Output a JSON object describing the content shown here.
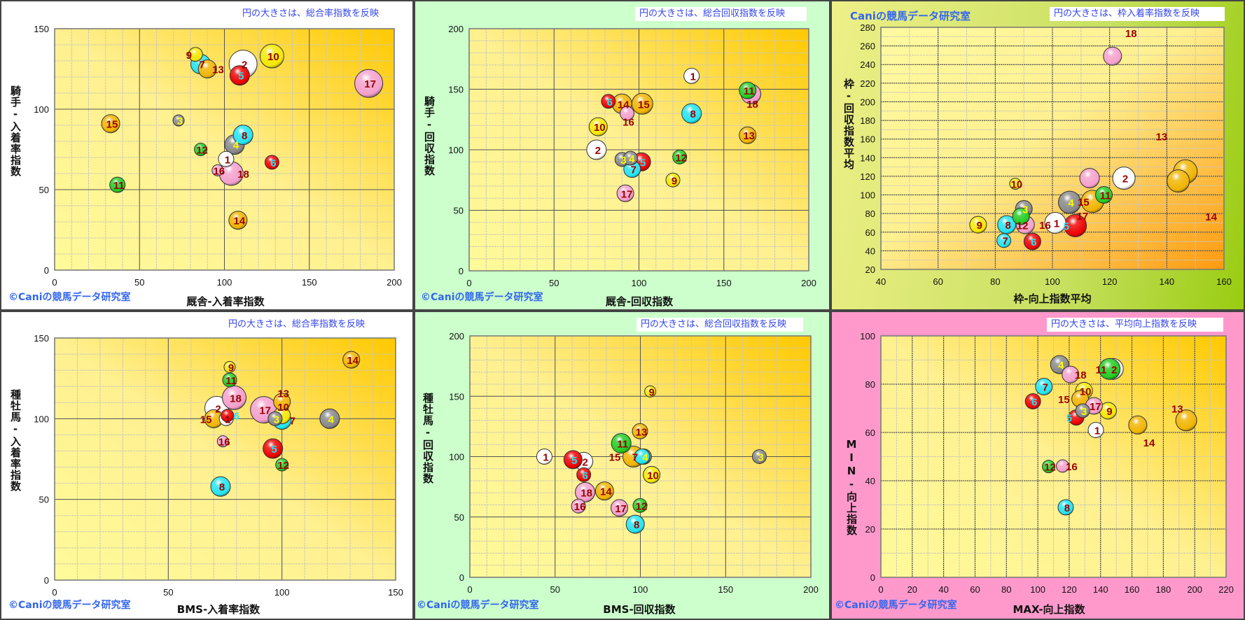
{
  "frame_colors": {
    "1": "#ffffff",
    "2": "#ffffff",
    "3": "#888888",
    "4": "#888888",
    "5": "#ee0000",
    "6": "#ee0000",
    "7": "#22e4f0",
    "8": "#22e4f0",
    "9": "#f4e800",
    "10": "#f4e800",
    "11": "#22cc22",
    "12": "#22cc22",
    "13": "#f0b400",
    "14": "#f0b400",
    "15": "#f0b400",
    "16": "#f4a0cc",
    "17": "#f4a0cc",
    "18": "#f4a0cc"
  },
  "label_colors": {
    "default": "#990000",
    "3": "#ffff00",
    "4": "#ffff00",
    "5": "#22e4f0",
    "6": "#22e4f0"
  },
  "chart_data": [
    {
      "type": "bubble",
      "note": "円の大きさは、総合率指数を反映",
      "credit": "©Caniの競馬データ研究室",
      "xlabel": "厩舎-入着率指数",
      "ylabel": "騎手-入着率指数",
      "xlim": [
        0,
        200
      ],
      "ylim": [
        0,
        150
      ],
      "xticks": [
        0,
        50,
        100,
        150,
        200
      ],
      "yticks": [
        0,
        50,
        100,
        150
      ],
      "minor": 10,
      "points": [
        {
          "label": "1",
          "x": 101,
          "y": 69,
          "size": 11
        },
        {
          "label": "2",
          "x": 111,
          "y": 128,
          "size": 20
        },
        {
          "label": "3",
          "x": 73,
          "y": 93,
          "size": 8
        },
        {
          "label": "4",
          "x": 106,
          "y": 78,
          "size": 14
        },
        {
          "label": "5",
          "x": 109,
          "y": 121,
          "size": 14
        },
        {
          "label": "6",
          "x": 128,
          "y": 67,
          "size": 10
        },
        {
          "label": "7",
          "x": 86,
          "y": 128,
          "size": 14
        },
        {
          "label": "8",
          "x": 111,
          "y": 84,
          "size": 14
        },
        {
          "label": "9",
          "x": 83,
          "y": 134,
          "size": 10
        },
        {
          "label": "10",
          "x": 128,
          "y": 133,
          "size": 17
        },
        {
          "label": "11",
          "x": 37,
          "y": 53,
          "size": 11
        },
        {
          "label": "12",
          "x": 86,
          "y": 75,
          "size": 9
        },
        {
          "label": "13",
          "x": 90,
          "y": 125,
          "size": 13
        },
        {
          "label": "14",
          "x": 108,
          "y": 31,
          "size": 13
        },
        {
          "label": "15",
          "x": 33,
          "y": 91,
          "size": 13
        },
        {
          "label": "16",
          "x": 96,
          "y": 62,
          "size": 8
        },
        {
          "label": "17",
          "x": 185,
          "y": 116,
          "size": 20
        },
        {
          "label": "18",
          "x": 104,
          "y": 60,
          "size": 17
        }
      ]
    },
    {
      "type": "bubble",
      "note": "円の大きさは、総合回収指数を反映",
      "credit": "©Caniの競馬データ研究室",
      "xlabel": "厩舎-回収指数",
      "ylabel": "騎手-回収指数",
      "xlim": [
        0,
        200
      ],
      "ylim": [
        0,
        200
      ],
      "xticks": [
        0,
        50,
        100,
        150,
        200
      ],
      "yticks": [
        0,
        50,
        100,
        150,
        200
      ],
      "minor": 10,
      "points": [
        {
          "label": "1",
          "x": 131,
          "y": 161,
          "size": 11
        },
        {
          "label": "2",
          "x": 75,
          "y": 100,
          "size": 14
        },
        {
          "label": "3",
          "x": 90,
          "y": 92,
          "size": 10
        },
        {
          "label": "4",
          "x": 95,
          "y": 93,
          "size": 10
        },
        {
          "label": "5",
          "x": 101.5,
          "y": 90,
          "size": 13
        },
        {
          "label": "6",
          "x": 82,
          "y": 140,
          "size": 10
        },
        {
          "label": "7",
          "x": 96,
          "y": 84,
          "size": 12
        },
        {
          "label": "8",
          "x": 131,
          "y": 130,
          "size": 14
        },
        {
          "label": "9",
          "x": 120,
          "y": 75,
          "size": 10
        },
        {
          "label": "10",
          "x": 76,
          "y": 119,
          "size": 13
        },
        {
          "label": "11",
          "x": 164,
          "y": 149,
          "size": 12
        },
        {
          "label": "12",
          "x": 124,
          "y": 94,
          "size": 10
        },
        {
          "label": "13",
          "x": 164,
          "y": 112,
          "size": 12
        },
        {
          "label": "14",
          "x": 90,
          "y": 138,
          "size": 14
        },
        {
          "label": "15",
          "x": 102,
          "y": 138,
          "size": 15
        },
        {
          "label": "16",
          "x": 93,
          "y": 130,
          "size": 10
        },
        {
          "label": "17",
          "x": 92,
          "y": 64,
          "size": 12
        },
        {
          "label": "18",
          "x": 166,
          "y": 146,
          "size": 14
        }
      ]
    },
    {
      "type": "bubble",
      "note": "円の大きさは、枠入着率指数を反映",
      "credit": "Caniの競馬データ研究室",
      "xlabel": "枠-向上指数平均",
      "ylabel": "枠-回収指数平均",
      "xlim": [
        40,
        160
      ],
      "ylim": [
        20,
        280
      ],
      "xticks": [
        40,
        60,
        80,
        100,
        120,
        140,
        160
      ],
      "yticks": [
        20,
        40,
        60,
        80,
        100,
        120,
        140,
        160,
        180,
        200,
        220,
        240,
        260,
        280
      ],
      "minor": 10,
      "points": [
        {
          "label": "1",
          "x": 101,
          "y": 70,
          "size": 15
        },
        {
          "label": "2",
          "x": 125,
          "y": 118,
          "size": 16
        },
        {
          "label": "3",
          "x": 90,
          "y": 85,
          "size": 12
        },
        {
          "label": "4",
          "x": 106,
          "y": 92,
          "size": 16
        },
        {
          "label": "5",
          "x": 108,
          "y": 67,
          "size": 16
        },
        {
          "label": "6",
          "x": 93,
          "y": 50,
          "size": 12
        },
        {
          "label": "7",
          "x": 83,
          "y": 51,
          "size": 10
        },
        {
          "label": "8",
          "x": 84,
          "y": 68,
          "size": 13
        },
        {
          "label": "9",
          "x": 74,
          "y": 68,
          "size": 12
        },
        {
          "label": "10",
          "x": 87,
          "y": 112,
          "size": 8
        },
        {
          "label": "11",
          "x": 118,
          "y": 100,
          "size": 12
        },
        {
          "label": "12",
          "x": 89,
          "y": 77,
          "size": 12
        },
        {
          "label": "13",
          "x": 146.5,
          "y": 125,
          "size": 17,
          "lx": 137.7,
          "ly": 163
        },
        {
          "label": "14",
          "x": 144,
          "y": 115,
          "size": 16,
          "lx": 155,
          "ly": 77
        },
        {
          "label": "15",
          "x": 114,
          "y": 93,
          "size": 16
        },
        {
          "label": "16",
          "x": 90.5,
          "y": 68,
          "size": 13
        },
        {
          "label": "17",
          "x": 113,
          "y": 118,
          "size": 14,
          "lx": 110,
          "ly": 78
        },
        {
          "label": "18",
          "x": 121,
          "y": 249,
          "size": 13,
          "lx": 127,
          "ly": 284
        }
      ]
    },
    {
      "type": "bubble",
      "note": "円の大きさは、総合率指数を反映",
      "credit": "©Caniの競馬データ研究室",
      "xlabel": "BMS-入着率指数",
      "ylabel": "種牡馬-入着率指数",
      "xlim": [
        0,
        150
      ],
      "ylim": [
        0,
        150
      ],
      "xticks": [
        0,
        50,
        100,
        150
      ],
      "yticks": [
        0,
        50,
        100,
        150
      ],
      "minor": 10,
      "points": [
        {
          "label": "1",
          "x": 75.5,
          "y": 100,
          "size": 10
        },
        {
          "label": "2",
          "x": 71.3,
          "y": 106.5,
          "size": 17
        },
        {
          "label": "3",
          "x": 97,
          "y": 100,
          "size": 10
        },
        {
          "label": "4",
          "x": 121,
          "y": 100,
          "size": 14
        },
        {
          "label": "5",
          "x": 96,
          "y": 81.5,
          "size": 14
        },
        {
          "label": "6",
          "x": 76,
          "y": 102,
          "size": 9
        },
        {
          "label": "7",
          "x": 100,
          "y": 99,
          "size": 13
        },
        {
          "label": "8",
          "x": 73,
          "y": 58,
          "size": 14
        },
        {
          "label": "9",
          "x": 77,
          "y": 132,
          "size": 8
        },
        {
          "label": "10",
          "x": 100,
          "y": 102,
          "size": 12
        },
        {
          "label": "11",
          "x": 77,
          "y": 124,
          "size": 10
        },
        {
          "label": "12",
          "x": 100,
          "y": 71.5,
          "size": 9
        },
        {
          "label": "13",
          "x": 100,
          "y": 110.5,
          "size": 12
        },
        {
          "label": "14",
          "x": 130.5,
          "y": 136.5,
          "size": 12
        },
        {
          "label": "15",
          "x": 70,
          "y": 100,
          "size": 13
        },
        {
          "label": "16",
          "x": 74,
          "y": 86,
          "size": 8
        },
        {
          "label": "17",
          "x": 92,
          "y": 105.5,
          "size": 19
        },
        {
          "label": "18",
          "x": 79,
          "y": 113,
          "size": 17
        }
      ]
    },
    {
      "type": "bubble",
      "note": "円の大きさは、総合回収指数を反映",
      "credit": "©Caniの競馬データ研究室",
      "xlabel": "BMS-回収指数",
      "ylabel": "種牡馬-回収指数",
      "xlim": [
        0,
        200
      ],
      "ylim": [
        0,
        200
      ],
      "xticks": [
        0,
        50,
        100,
        150,
        200
      ],
      "yticks": [
        0,
        50,
        100,
        150,
        200
      ],
      "minor": 10,
      "points": [
        {
          "label": "1",
          "x": 43.7,
          "y": 100,
          "size": 11
        },
        {
          "label": "2",
          "x": 66.8,
          "y": 96,
          "size": 13
        },
        {
          "label": "3",
          "x": 169.8,
          "y": 100,
          "size": 10
        },
        {
          "label": "4",
          "x": 102,
          "y": 100,
          "size": 11
        },
        {
          "label": "5",
          "x": 60.5,
          "y": 97.5,
          "size": 13
        },
        {
          "label": "6",
          "x": 66.8,
          "y": 85,
          "size": 10
        },
        {
          "label": "7",
          "x": 101,
          "y": 100,
          "size": 11
        },
        {
          "label": "8",
          "x": 97,
          "y": 44,
          "size": 13
        },
        {
          "label": "9",
          "x": 105.8,
          "y": 154,
          "size": 8
        },
        {
          "label": "10",
          "x": 106.6,
          "y": 85,
          "size": 12
        },
        {
          "label": "11",
          "x": 88.8,
          "y": 111,
          "size": 14
        },
        {
          "label": "12",
          "x": 99.8,
          "y": 59.5,
          "size": 10
        },
        {
          "label": "13",
          "x": 99.8,
          "y": 121,
          "size": 11
        },
        {
          "label": "14",
          "x": 79,
          "y": 71.5,
          "size": 13
        },
        {
          "label": "15",
          "x": 95.9,
          "y": 100,
          "size": 15
        },
        {
          "label": "16",
          "x": 63.7,
          "y": 59,
          "size": 10
        },
        {
          "label": "17",
          "x": 87.7,
          "y": 57.5,
          "size": 12
        },
        {
          "label": "18",
          "x": 67.6,
          "y": 70.5,
          "size": 14
        }
      ]
    },
    {
      "type": "bubble",
      "note": "円の大きさは、平均向上指数を反映",
      "credit": "©Caniの競馬データ研究室",
      "xlabel": "MAX-向上指数",
      "ylabel": "MIN-向上指数",
      "xlim": [
        0,
        220
      ],
      "ylim": [
        0,
        100
      ],
      "xticks": [
        0,
        20,
        40,
        60,
        80,
        100,
        120,
        140,
        160,
        180,
        200,
        220
      ],
      "yticks": [
        0,
        20,
        40,
        60,
        80,
        100
      ],
      "minor": 10,
      "points": [
        {
          "label": "1",
          "x": 137,
          "y": 61,
          "size": 11
        },
        {
          "label": "2",
          "x": 147.8,
          "y": 86.3,
          "size": 15
        },
        {
          "label": "3",
          "x": 128.6,
          "y": 69,
          "size": 10
        },
        {
          "label": "4",
          "x": 113.9,
          "y": 88.1,
          "size": 13
        },
        {
          "label": "5",
          "x": 124.5,
          "y": 66.2,
          "size": 11
        },
        {
          "label": "6",
          "x": 96.9,
          "y": 72.9,
          "size": 11
        },
        {
          "label": "7",
          "x": 103.9,
          "y": 79,
          "size": 12
        },
        {
          "label": "8",
          "x": 117.8,
          "y": 29,
          "size": 11
        },
        {
          "label": "9",
          "x": 144.8,
          "y": 69,
          "size": 12
        },
        {
          "label": "10",
          "x": 129.5,
          "y": 77.3,
          "size": 12
        },
        {
          "label": "11",
          "x": 145.8,
          "y": 86.3,
          "size": 15
        },
        {
          "label": "12",
          "x": 106.9,
          "y": 45.9,
          "size": 9
        },
        {
          "label": "13",
          "x": 194.6,
          "y": 65,
          "size": 15,
          "lx": 188,
          "ly": 70
        },
        {
          "label": "14",
          "x": 163.7,
          "y": 63.1,
          "size": 13,
          "lx": 170,
          "ly": 56
        },
        {
          "label": "15",
          "x": 127,
          "y": 73.9,
          "size": 12
        },
        {
          "label": "16",
          "x": 115.8,
          "y": 46.1,
          "size": 9
        },
        {
          "label": "17",
          "x": 135.8,
          "y": 71,
          "size": 12
        },
        {
          "label": "18",
          "x": 120.8,
          "y": 84,
          "size": 12
        }
      ]
    }
  ]
}
